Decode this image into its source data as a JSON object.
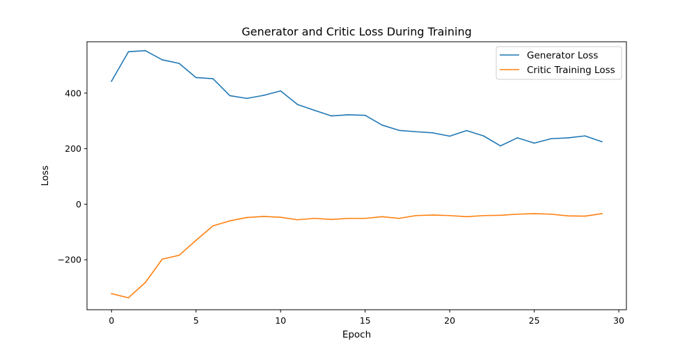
{
  "chart_data": {
    "type": "line",
    "title": "Generator and Critic Loss During Training",
    "xlabel": "Epoch",
    "ylabel": "Loss",
    "xlim": [
      -1.45,
      30.45
    ],
    "ylim": [
      -380,
      585
    ],
    "xticks": [
      0,
      5,
      10,
      15,
      20,
      25,
      30
    ],
    "yticks": [
      -200,
      0,
      200,
      400
    ],
    "ytick_labels": [
      "−200",
      "0",
      "200",
      "400"
    ],
    "grid": false,
    "legend_position": "top-right",
    "x": [
      0,
      1,
      2,
      3,
      4,
      5,
      6,
      7,
      8,
      9,
      10,
      11,
      12,
      13,
      14,
      15,
      16,
      17,
      18,
      19,
      20,
      21,
      22,
      23,
      24,
      25,
      26,
      27,
      28,
      29
    ],
    "series": [
      {
        "name": "Generator Loss",
        "color": "#1f77b4",
        "values": [
          443,
          549,
          553,
          520,
          507,
          456,
          452,
          391,
          381,
          392,
          408,
          359,
          338,
          318,
          322,
          320,
          285,
          266,
          261,
          257,
          245,
          265,
          246,
          210,
          239,
          220,
          236,
          239,
          246,
          225
        ]
      },
      {
        "name": "Critic Training Loss",
        "color": "#ff7f0e",
        "values": [
          -322,
          -337,
          -282,
          -198,
          -184,
          -130,
          -78,
          -60,
          -48,
          -44,
          -47,
          -56,
          -51,
          -55,
          -51,
          -51,
          -45,
          -51,
          -41,
          -39,
          -41,
          -45,
          -41,
          -40,
          -36,
          -34,
          -36,
          -42,
          -43,
          -34
        ]
      }
    ]
  }
}
